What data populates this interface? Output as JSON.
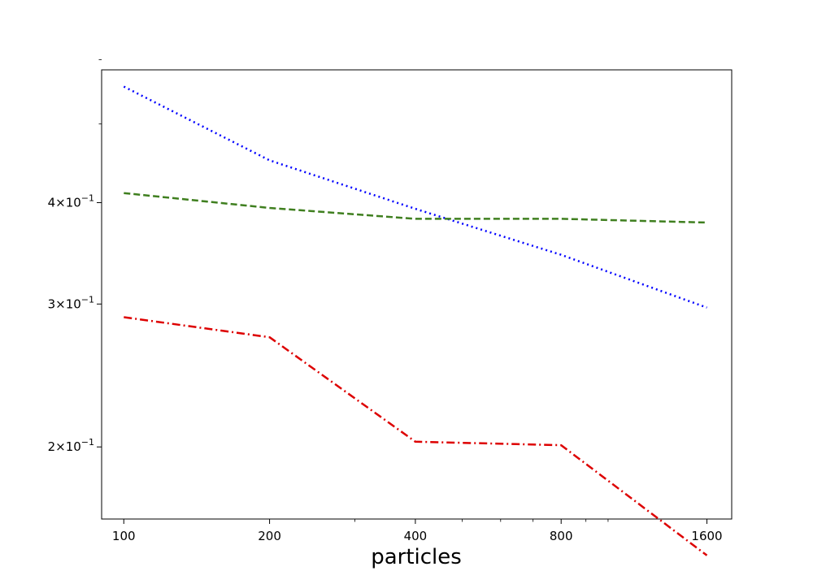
{
  "chart_data": {
    "type": "line",
    "title": "",
    "xlabel": "particles",
    "ylabel": "",
    "xscale": "log",
    "yscale": "log",
    "xlim": [
      90,
      1800
    ],
    "ylim": [
      0.163,
      0.583
    ],
    "grid": false,
    "x": [
      100,
      200,
      400,
      800,
      1600
    ],
    "x_tick_labels": [
      "100",
      "200",
      "400",
      "800",
      "1600"
    ],
    "y_ticks": [
      {
        "value": 0.2,
        "base": "2",
        "exponent": "−1"
      },
      {
        "value": 0.3,
        "base": "3",
        "exponent": "−1"
      },
      {
        "value": 0.4,
        "base": "4",
        "exponent": "−1"
      }
    ],
    "series": [
      {
        "color": "#0000ff",
        "dash": "dotted",
        "values": [
          0.556,
          0.451,
          0.393,
          0.345,
          0.297
        ]
      },
      {
        "color": "#3f7f1f",
        "dash": "dashed",
        "values": [
          0.411,
          0.394,
          0.382,
          0.382,
          0.378
        ]
      },
      {
        "color": "#dd0000",
        "dash": "dashdot",
        "values": [
          0.289,
          0.273,
          0.203,
          0.201,
          0.147
        ]
      }
    ]
  }
}
